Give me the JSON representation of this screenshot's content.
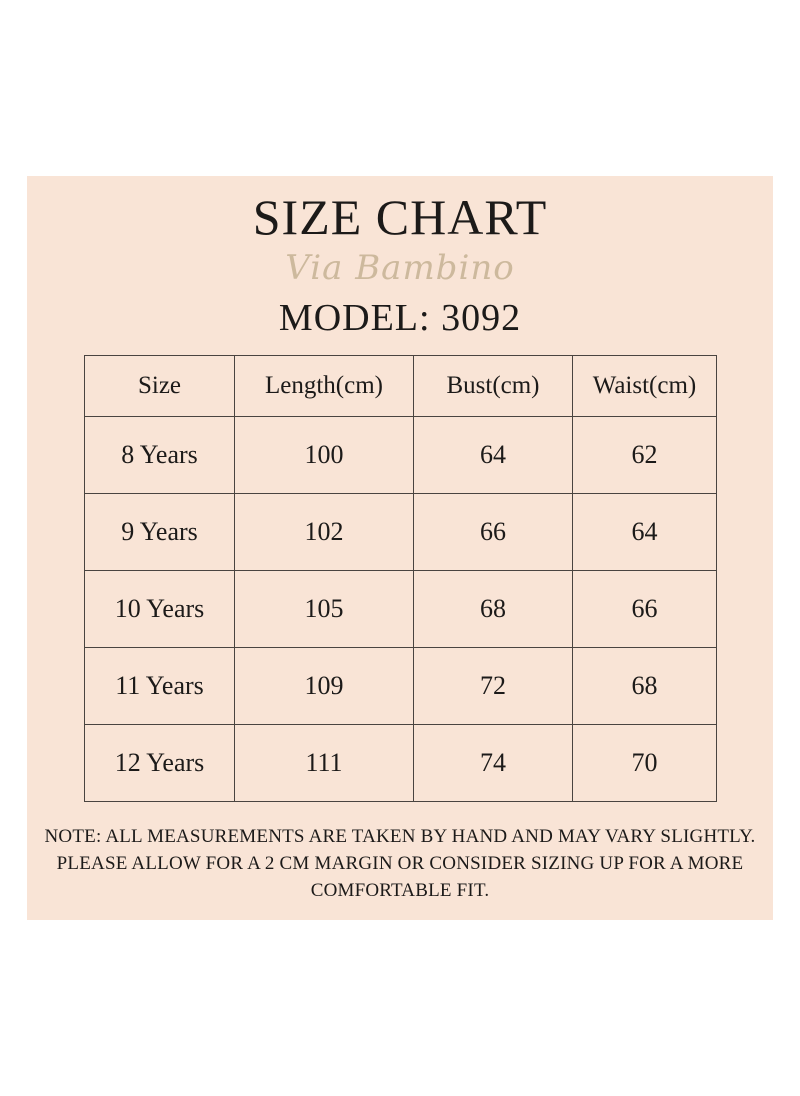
{
  "header": {
    "title": "SIZE CHART",
    "brand": "Via Bambino",
    "model": "MODEL: 3092"
  },
  "table": {
    "headers": [
      "Size",
      "Length(cm)",
      "Bust(cm)",
      "Waist(cm)"
    ],
    "rows": [
      [
        "8 Years",
        "100",
        "64",
        "62"
      ],
      [
        "9 Years",
        "102",
        "66",
        "64"
      ],
      [
        "10 Years",
        "105",
        "68",
        "66"
      ],
      [
        "11 Years",
        "109",
        "72",
        "68"
      ],
      [
        "12 Years",
        "111",
        "74",
        "70"
      ]
    ]
  },
  "note": "NOTE: ALL MEASUREMENTS ARE TAKEN BY HAND AND MAY VARY SLIGHTLY. PLEASE ALLOW FOR A 2 CM MARGIN OR CONSIDER SIZING UP FOR A MORE COMFORTABLE FIT.",
  "colors": {
    "background": "#ffffff",
    "card": "#f9e4d6",
    "text": "#1c1a19",
    "brand": "#cdb99d",
    "border": "#4a4440"
  }
}
